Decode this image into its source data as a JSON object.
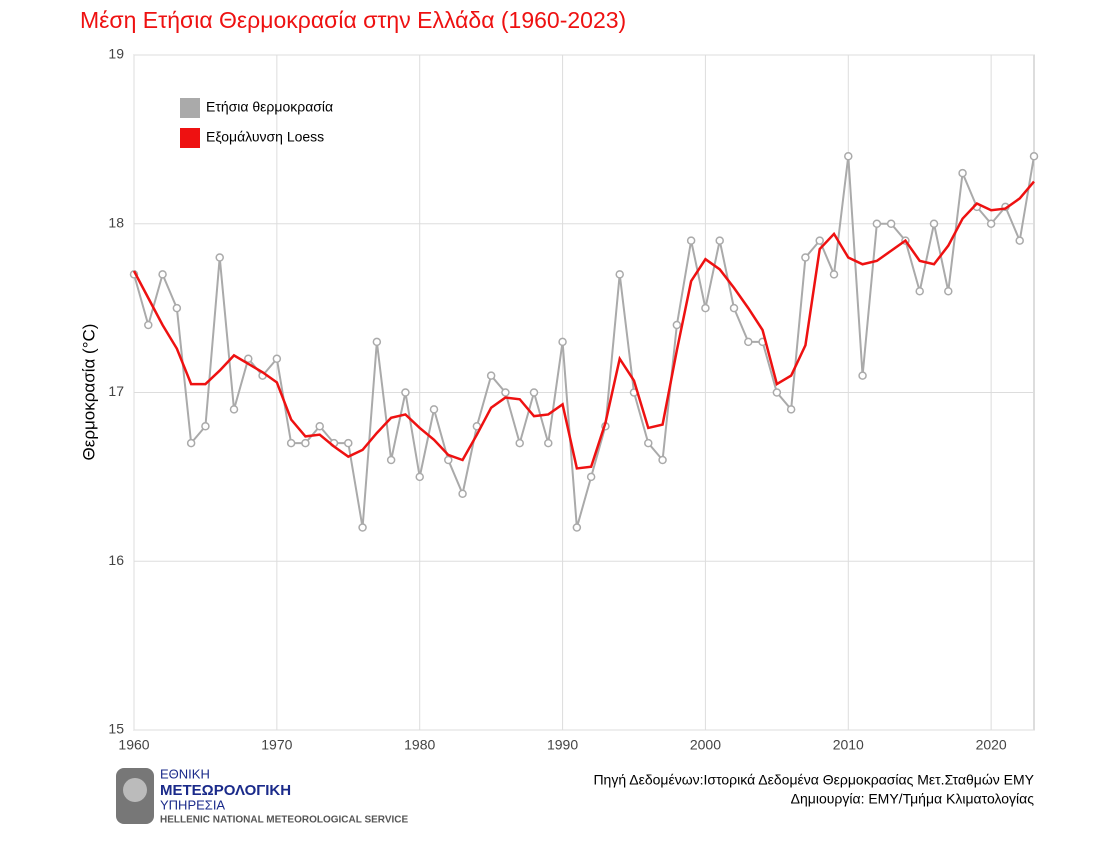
{
  "chart_data": {
    "type": "line",
    "title": "Μέση Ετήσια Θερμοκρασία στην Ελλάδα (1960-2023)",
    "y_label": "Θερμοκρασία (°C)",
    "x": [
      1960,
      1961,
      1962,
      1963,
      1964,
      1965,
      1966,
      1967,
      1968,
      1969,
      1970,
      1971,
      1972,
      1973,
      1974,
      1975,
      1976,
      1977,
      1978,
      1979,
      1980,
      1981,
      1982,
      1983,
      1984,
      1985,
      1986,
      1987,
      1988,
      1989,
      1990,
      1991,
      1992,
      1993,
      1994,
      1995,
      1996,
      1997,
      1998,
      1999,
      2000,
      2001,
      2002,
      2003,
      2004,
      2005,
      2006,
      2007,
      2008,
      2009,
      2010,
      2011,
      2012,
      2013,
      2014,
      2015,
      2016,
      2017,
      2018,
      2019,
      2020,
      2021,
      2022,
      2023
    ],
    "series": [
      {
        "name": "Ετήσια θερμοκρασία",
        "color": "#aaaaaa",
        "markers": true,
        "values": [
          17.7,
          17.4,
          17.7,
          17.5,
          16.7,
          16.8,
          17.8,
          16.9,
          17.2,
          17.1,
          17.2,
          16.7,
          16.7,
          16.8,
          16.7,
          16.7,
          16.2,
          17.3,
          16.6,
          17.0,
          16.5,
          16.9,
          16.6,
          16.4,
          16.8,
          17.1,
          17.0,
          16.7,
          17.0,
          16.7,
          17.3,
          16.2,
          16.5,
          16.8,
          17.7,
          17.0,
          16.7,
          16.6,
          17.4,
          17.9,
          17.5,
          17.9,
          17.5,
          17.3,
          17.3,
          17.0,
          16.9,
          17.8,
          17.9,
          17.7,
          18.4,
          17.1,
          18.0,
          18.0,
          17.9,
          17.6,
          18.0,
          17.6,
          18.3,
          18.1,
          18.0,
          18.1,
          17.9,
          18.4
        ]
      },
      {
        "name": "Εξομάλυνση Loess",
        "color": "#ee1111",
        "markers": false,
        "values": [
          17.72,
          17.56,
          17.4,
          17.26,
          17.05,
          17.05,
          17.13,
          17.22,
          17.17,
          17.12,
          17.06,
          16.84,
          16.74,
          16.75,
          16.68,
          16.62,
          16.66,
          16.76,
          16.85,
          16.87,
          16.79,
          16.72,
          16.63,
          16.6,
          16.75,
          16.91,
          16.97,
          16.96,
          16.86,
          16.87,
          16.93,
          16.55,
          16.56,
          16.82,
          17.2,
          17.07,
          16.79,
          16.81,
          17.25,
          17.66,
          17.79,
          17.73,
          17.62,
          17.5,
          17.37,
          17.05,
          17.1,
          17.28,
          17.85,
          17.94,
          17.8,
          17.76,
          17.78,
          17.84,
          17.9,
          17.78,
          17.76,
          17.87,
          18.03,
          18.12,
          18.08,
          18.09,
          18.15,
          18.25
        ]
      }
    ],
    "xlim": [
      1960,
      2023
    ],
    "xticks": [
      1960,
      1970,
      1980,
      1990,
      2000,
      2010,
      2020
    ],
    "ylim": [
      15,
      19
    ],
    "yticks": [
      15,
      16,
      17,
      18,
      19
    ],
    "grid": true,
    "legend": "upper left",
    "source": [
      "Πηγή Δεδομένων:Ιστορικά Δεδομένα Θερμοκρασίας Μετ.Σταθμών ΕΜΥ",
      "Δημιουργία: ΕΜΥ/Τμήμα Κλιματολογίας"
    ],
    "logo": [
      "ΕΘΝΙΚΗ",
      "ΜΕΤΕΩΡΟΛΟΓΙΚΗ",
      "ΥΠΗΡΕΣΙΑ",
      "HELLENIC NATIONAL METEOROLOGICAL SERVICE"
    ]
  }
}
